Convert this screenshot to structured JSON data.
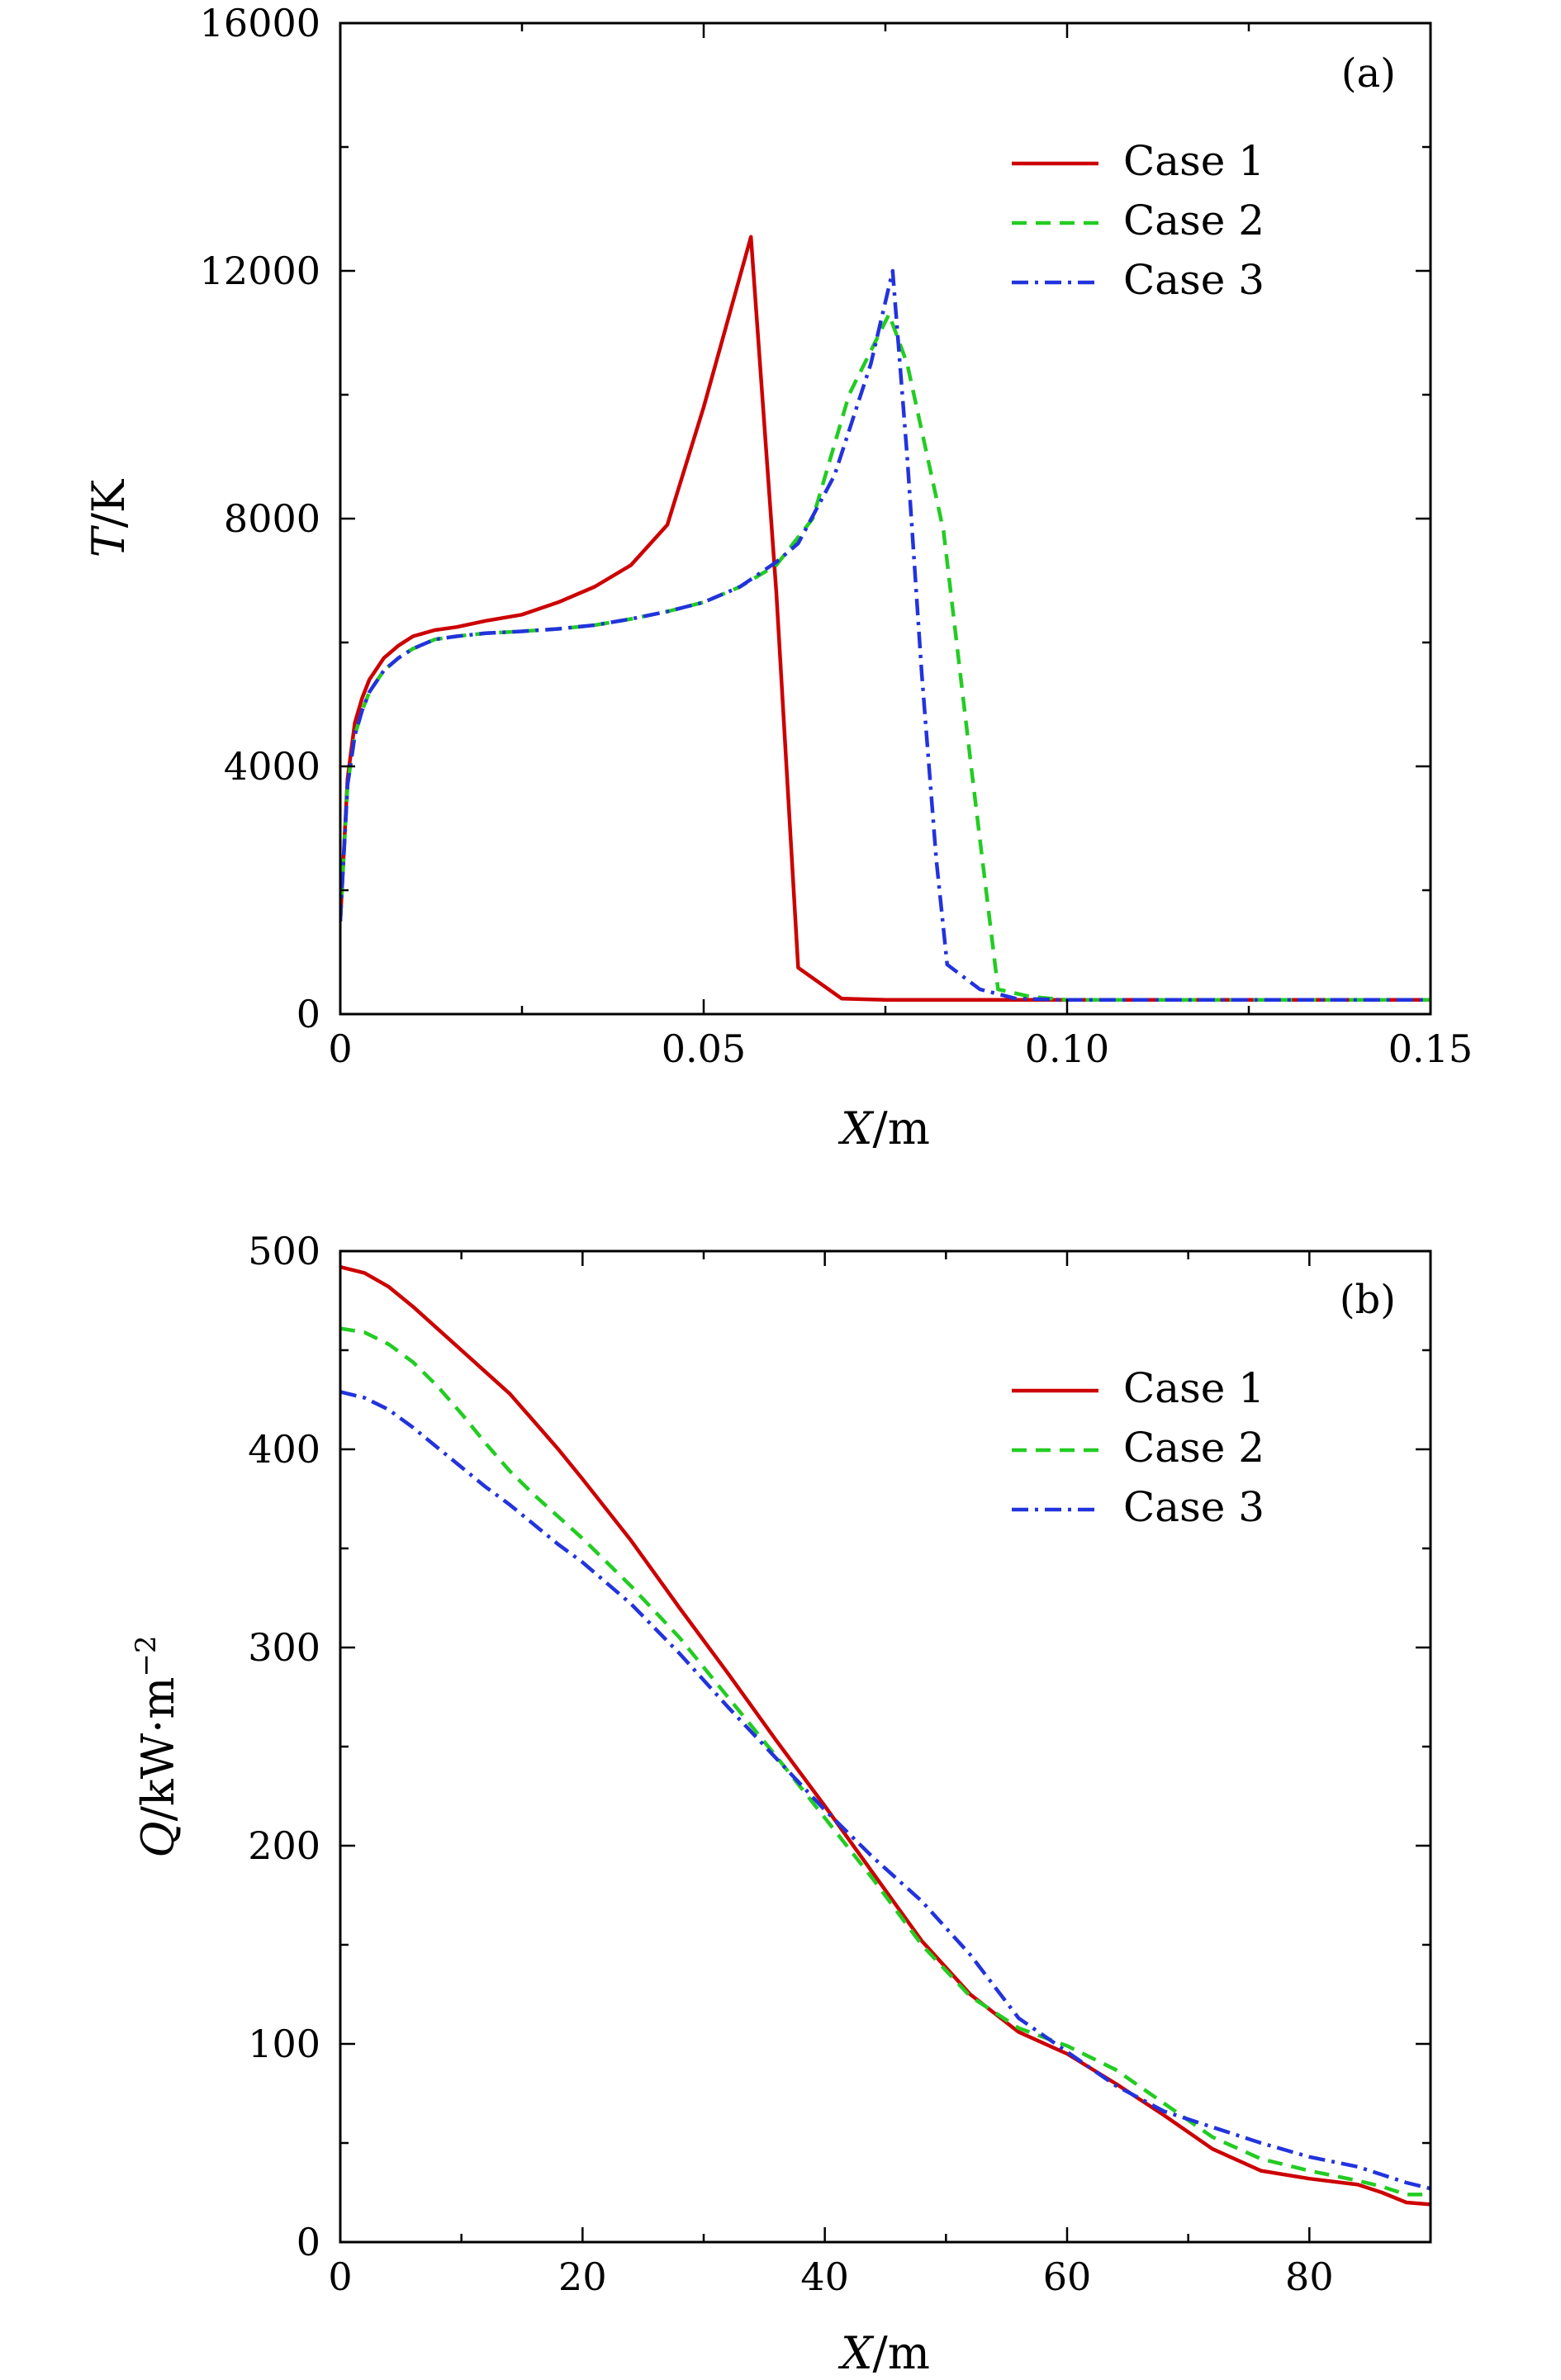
{
  "chart_data": [
    {
      "type": "line",
      "panel": "(a)",
      "xlabel": {
        "var": "X",
        "unit": "/m"
      },
      "ylabel": {
        "var": "T",
        "unit": "/K"
      },
      "xlim": [
        0,
        0.15
      ],
      "ylim": [
        0,
        16000
      ],
      "xticks": [
        0,
        0.05,
        0.1,
        0.15
      ],
      "xtick_labels": [
        "0",
        "0.05",
        "0.10",
        "0.15"
      ],
      "yticks": [
        0,
        4000,
        8000,
        12000,
        16000
      ],
      "ytick_labels": [
        "0",
        "4000",
        "8000",
        "12000",
        "16000"
      ],
      "legend_position": "top-right",
      "series": [
        {
          "name": "Case 1",
          "color": "#cc0000",
          "dash": "solid",
          "x": [
            0,
            0.001,
            0.002,
            0.003,
            0.004,
            0.006,
            0.008,
            0.01,
            0.013,
            0.016,
            0.02,
            0.025,
            0.03,
            0.035,
            0.04,
            0.045,
            0.05,
            0.0565,
            0.06,
            0.063,
            0.069,
            0.075,
            0.09,
            0.12,
            0.15
          ],
          "y": [
            1500,
            3800,
            4700,
            5100,
            5400,
            5750,
            5950,
            6100,
            6200,
            6250,
            6350,
            6450,
            6650,
            6900,
            7250,
            7900,
            9800,
            12550,
            6800,
            750,
            250,
            230,
            230,
            230,
            230
          ]
        },
        {
          "name": "Case 2",
          "color": "#22cc22",
          "dash": "18,11",
          "x": [
            0,
            0.001,
            0.002,
            0.003,
            0.004,
            0.006,
            0.008,
            0.01,
            0.013,
            0.016,
            0.02,
            0.025,
            0.03,
            0.035,
            0.04,
            0.045,
            0.05,
            0.055,
            0.06,
            0.065,
            0.07,
            0.0755,
            0.078,
            0.083,
            0.087,
            0.0905,
            0.095,
            0.1,
            0.12,
            0.15
          ],
          "y": [
            1500,
            3700,
            4500,
            4900,
            5200,
            5550,
            5750,
            5900,
            6050,
            6100,
            6150,
            6180,
            6220,
            6280,
            6380,
            6500,
            6650,
            6900,
            7250,
            8000,
            10000,
            11300,
            10500,
            7800,
            3800,
            400,
            280,
            230,
            230,
            230
          ]
        },
        {
          "name": "Case 3",
          "color": "#2233dd",
          "dash": "20,8,4,8",
          "x": [
            0,
            0.001,
            0.002,
            0.003,
            0.004,
            0.006,
            0.008,
            0.01,
            0.013,
            0.016,
            0.02,
            0.025,
            0.03,
            0.035,
            0.04,
            0.045,
            0.05,
            0.055,
            0.06,
            0.063,
            0.068,
            0.073,
            0.076,
            0.078,
            0.08,
            0.082,
            0.0835,
            0.088,
            0.093,
            0.1,
            0.12,
            0.15
          ],
          "y": [
            1500,
            3700,
            4500,
            4900,
            5200,
            5550,
            5750,
            5900,
            6050,
            6100,
            6150,
            6180,
            6220,
            6280,
            6380,
            6500,
            6650,
            6900,
            7300,
            7600,
            8700,
            10500,
            12000,
            9000,
            5500,
            2500,
            800,
            400,
            250,
            230,
            230,
            230
          ]
        }
      ]
    },
    {
      "type": "line",
      "panel": "(b)",
      "xlabel": {
        "var": "X",
        "unit": "/m"
      },
      "ylabel": {
        "var": "Q",
        "unit": "/kW·m",
        "sup": "−2"
      },
      "xlim": [
        0,
        90
      ],
      "ylim": [
        0,
        500
      ],
      "xticks": [
        0,
        20,
        40,
        60,
        80
      ],
      "xtick_labels": [
        "0",
        "20",
        "40",
        "60",
        "80"
      ],
      "yticks": [
        0,
        100,
        200,
        300,
        400,
        500
      ],
      "ytick_labels": [
        "0",
        "100",
        "200",
        "300",
        "400",
        "500"
      ],
      "legend_position": "top-right",
      "series": [
        {
          "name": "Case 1",
          "color": "#cc0000",
          "dash": "solid",
          "x": [
            0,
            2,
            4,
            6,
            8,
            10,
            12,
            14,
            16,
            18,
            20,
            24,
            28,
            32,
            36,
            40,
            44,
            48,
            52,
            56,
            60,
            64,
            68,
            72,
            76,
            80,
            84,
            86,
            88,
            90
          ],
          "y": [
            492,
            489,
            482,
            472,
            461,
            450,
            439,
            428,
            414,
            400,
            385,
            354,
            320,
            287,
            253,
            220,
            186,
            152,
            125,
            106,
            95,
            80,
            64,
            47,
            36,
            32,
            29,
            25,
            20,
            19
          ]
        },
        {
          "name": "Case 2",
          "color": "#22cc22",
          "dash": "18,11",
          "x": [
            0,
            2,
            4,
            6,
            8,
            10,
            12,
            14,
            16,
            18,
            20,
            24,
            28,
            32,
            36,
            40,
            44,
            48,
            52,
            56,
            60,
            64,
            68,
            72,
            76,
            80,
            84,
            86,
            88,
            90
          ],
          "y": [
            461,
            459,
            453,
            444,
            432,
            418,
            403,
            389,
            377,
            366,
            355,
            331,
            305,
            275,
            245,
            214,
            183,
            150,
            124,
            108,
            99,
            87,
            70,
            53,
            42,
            36,
            31,
            28,
            24,
            24
          ]
        },
        {
          "name": "Case 3",
          "color": "#2233dd",
          "dash": "20,8,4,8",
          "x": [
            0,
            2,
            4,
            6,
            8,
            10,
            12,
            14,
            16,
            18,
            20,
            24,
            28,
            32,
            36,
            40,
            44,
            48,
            52,
            56,
            60,
            64,
            68,
            72,
            76,
            80,
            84,
            86,
            88,
            90
          ],
          "y": [
            429,
            426,
            420,
            411,
            401,
            391,
            381,
            372,
            362,
            352,
            343,
            322,
            297,
            270,
            244,
            218,
            194,
            172,
            145,
            113,
            96,
            79,
            66,
            58,
            50,
            43,
            38,
            34,
            30,
            27
          ]
        }
      ]
    }
  ]
}
